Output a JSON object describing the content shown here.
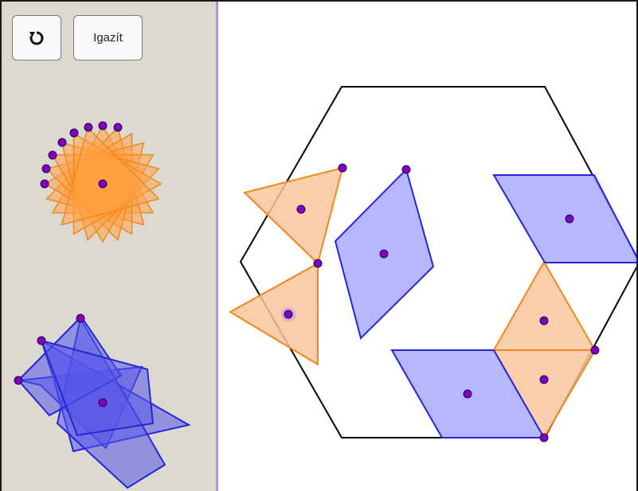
{
  "toolbar": {
    "reset_icon": "rotate-cw-icon",
    "align_label": "Igazít"
  },
  "colors": {
    "orange_fill": "#f7c79b",
    "orange_stroke": "#f2871c",
    "orange_star_fill": "#ffa040",
    "blue_fill": "#aaaaff",
    "blue_stroke": "#2626d9",
    "blue_star_fill": "#6666ee",
    "point_fill": "#8000c0",
    "point_stroke": "#2a0050",
    "hexagon_stroke": "#000000",
    "sidebar_bg": "#dcd9d0",
    "divider": "#9a9ae6"
  }
}
